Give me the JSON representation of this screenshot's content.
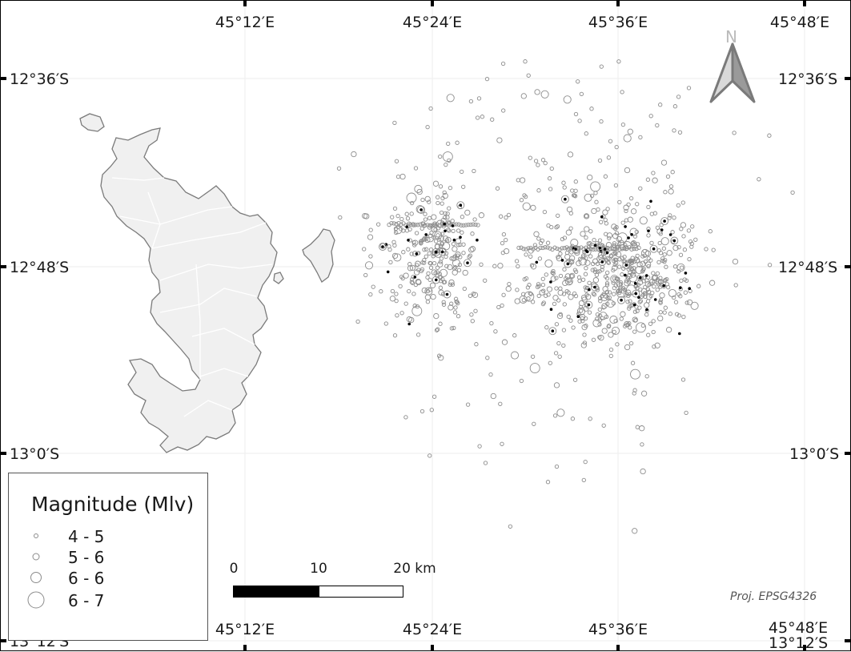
{
  "map": {
    "lon_labels": [
      "45°12′E",
      "45°24′E",
      "45°36′E",
      "45°48′E"
    ],
    "lat_labels": [
      "12°36′S",
      "12°48′S",
      "13°0′S",
      "13°12′S"
    ],
    "north_arrow": {
      "letter": "N",
      "icon": "north-arrow-icon"
    },
    "projection": "Proj. EPSG4326",
    "land_color": "#f0f0f0",
    "coast_color": "#7a7a7a"
  },
  "legend": {
    "title": "Magnitude (Mlv)",
    "items": [
      {
        "label": "4 - 5"
      },
      {
        "label": "5 - 6"
      },
      {
        "label": "6 - 6"
      },
      {
        "label": "6 - 7"
      }
    ]
  },
  "scalebar": {
    "labels": [
      "0",
      "10",
      "20 km"
    ]
  },
  "colors": {
    "epicenter_outline": "#8c8c8c",
    "strong_event": "#000000"
  }
}
